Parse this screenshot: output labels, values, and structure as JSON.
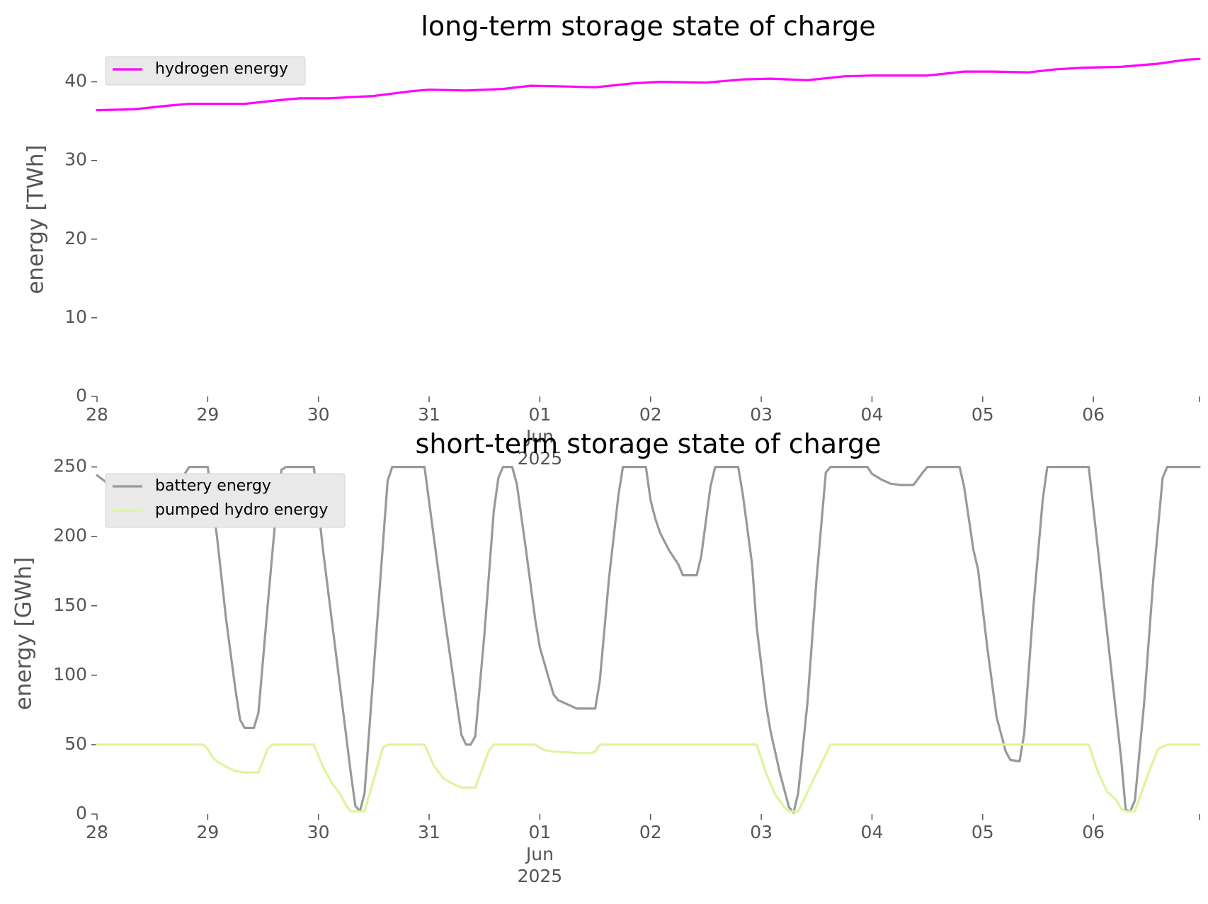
{
  "chart_data": [
    {
      "type": "line",
      "title": "long-term storage state of charge",
      "xlabel": "",
      "ylabel": "energy [TWh]",
      "x_range": [
        "2025-05-28 00:00",
        "2025-06-06 23:00"
      ],
      "x_ticks": [
        "28",
        "29",
        "30",
        "31",
        "01",
        "02",
        "03",
        "04",
        "05",
        "06"
      ],
      "x_tick_sublabel": {
        "tick": "01",
        "lines": [
          "Jun",
          "2025"
        ]
      },
      "ylim": [
        0,
        45
      ],
      "y_ticks": [
        0,
        10,
        20,
        30,
        40
      ],
      "grid": false,
      "legend_position": "upper-left",
      "series": [
        {
          "name": "hydrogen energy",
          "color": "#ff00ff",
          "points": [
            [
              "2025-05-28 00:00",
              36.4
            ],
            [
              "2025-05-28 08:00",
              36.5
            ],
            [
              "2025-05-28 16:00",
              37.0
            ],
            [
              "2025-05-28 20:00",
              37.2
            ],
            [
              "2025-05-29 08:00",
              37.2
            ],
            [
              "2025-05-29 16:00",
              37.7
            ],
            [
              "2025-05-29 20:00",
              37.9
            ],
            [
              "2025-05-30 02:00",
              37.9
            ],
            [
              "2025-05-30 12:00",
              38.2
            ],
            [
              "2025-05-30 20:00",
              38.8
            ],
            [
              "2025-05-31 00:00",
              39.0
            ],
            [
              "2025-05-31 08:00",
              38.9
            ],
            [
              "2025-05-31 16:00",
              39.1
            ],
            [
              "2025-05-31 22:00",
              39.5
            ],
            [
              "2025-06-01 06:00",
              39.4
            ],
            [
              "2025-06-01 12:00",
              39.3
            ],
            [
              "2025-06-01 20:00",
              39.8
            ],
            [
              "2025-06-02 02:00",
              40.0
            ],
            [
              "2025-06-02 12:00",
              39.9
            ],
            [
              "2025-06-02 20:00",
              40.3
            ],
            [
              "2025-06-03 02:00",
              40.4
            ],
            [
              "2025-06-03 10:00",
              40.2
            ],
            [
              "2025-06-03 18:00",
              40.7
            ],
            [
              "2025-06-04 00:00",
              40.8
            ],
            [
              "2025-06-04 12:00",
              40.8
            ],
            [
              "2025-06-04 20:00",
              41.3
            ],
            [
              "2025-06-05 02:00",
              41.3
            ],
            [
              "2025-06-05 10:00",
              41.2
            ],
            [
              "2025-06-05 16:00",
              41.6
            ],
            [
              "2025-06-05 22:00",
              41.8
            ],
            [
              "2025-06-06 06:00",
              41.9
            ],
            [
              "2025-06-06 14:00",
              42.3
            ],
            [
              "2025-06-06 20:00",
              42.8
            ],
            [
              "2025-06-06 23:00",
              42.9
            ]
          ]
        }
      ]
    },
    {
      "type": "line",
      "title": "short-term storage state of charge",
      "xlabel": "",
      "ylabel": "energy [GWh]",
      "x_range": [
        "2025-05-28 00:00",
        "2025-06-06 23:00"
      ],
      "x_ticks": [
        "28",
        "29",
        "30",
        "31",
        "01",
        "02",
        "03",
        "04",
        "05",
        "06"
      ],
      "x_tick_sublabel": {
        "tick": "01",
        "lines": [
          "Jun",
          "2025"
        ]
      },
      "ylim": [
        0,
        260
      ],
      "y_ticks": [
        0,
        50,
        100,
        150,
        200,
        250
      ],
      "grid": false,
      "legend_position": "upper-left",
      "series": [
        {
          "name": "battery energy",
          "color": "#999999",
          "points": [
            [
              "2025-05-28 00:00",
              244
            ],
            [
              "2025-05-28 02:00",
              239
            ],
            [
              "2025-05-28 06:00",
              235
            ],
            [
              "2025-05-28 10:00",
              232
            ],
            [
              "2025-05-28 14:00",
              232
            ],
            [
              "2025-05-28 16:00",
              232
            ],
            [
              "2025-05-28 18:00",
              240
            ],
            [
              "2025-05-28 20:00",
              250
            ],
            [
              "2025-05-29 00:00",
              250
            ],
            [
              "2025-05-29 02:00",
              200
            ],
            [
              "2025-05-29 04:00",
              140
            ],
            [
              "2025-05-29 06:00",
              90
            ],
            [
              "2025-05-29 07:00",
              68
            ],
            [
              "2025-05-29 08:00",
              62
            ],
            [
              "2025-05-29 10:00",
              62
            ],
            [
              "2025-05-29 11:00",
              73
            ],
            [
              "2025-05-29 13:00",
              150
            ],
            [
              "2025-05-29 15:00",
              225
            ],
            [
              "2025-05-29 16:00",
              248
            ],
            [
              "2025-05-29 17:00",
              250
            ],
            [
              "2025-05-29 23:00",
              250
            ],
            [
              "2025-05-30 01:00",
              190
            ],
            [
              "2025-05-30 04:00",
              110
            ],
            [
              "2025-05-30 07:00",
              30
            ],
            [
              "2025-05-30 08:00",
              6
            ],
            [
              "2025-05-30 09:00",
              2
            ],
            [
              "2025-05-30 10:00",
              15
            ],
            [
              "2025-05-30 11:00",
              60
            ],
            [
              "2025-05-30 13:00",
              150
            ],
            [
              "2025-05-30 15:00",
              240
            ],
            [
              "2025-05-30 16:00",
              250
            ],
            [
              "2025-05-30 23:00",
              250
            ],
            [
              "2025-05-31 03:00",
              150
            ],
            [
              "2025-05-31 06:00",
              80
            ],
            [
              "2025-05-31 07:00",
              57
            ],
            [
              "2025-05-31 08:00",
              50
            ],
            [
              "2025-05-31 09:00",
              50
            ],
            [
              "2025-05-31 10:00",
              56
            ],
            [
              "2025-05-31 12:00",
              130
            ],
            [
              "2025-05-31 14:00",
              218
            ],
            [
              "2025-05-31 15:00",
              242
            ],
            [
              "2025-05-31 16:00",
              250
            ],
            [
              "2025-05-31 18:00",
              250
            ],
            [
              "2025-05-31 19:00",
              238
            ],
            [
              "2025-05-31 21:00",
              190
            ],
            [
              "2025-05-31 23:00",
              140
            ],
            [
              "2025-06-01 00:00",
              120
            ],
            [
              "2025-06-01 02:00",
              97
            ],
            [
              "2025-06-01 03:00",
              86
            ],
            [
              "2025-06-01 04:00",
              82
            ],
            [
              "2025-06-01 06:00",
              79
            ],
            [
              "2025-06-01 08:00",
              76
            ],
            [
              "2025-06-01 10:00",
              76
            ],
            [
              "2025-06-01 12:00",
              76
            ],
            [
              "2025-06-01 13:00",
              96
            ],
            [
              "2025-06-01 15:00",
              170
            ],
            [
              "2025-06-01 17:00",
              229
            ],
            [
              "2025-06-01 18:00",
              250
            ],
            [
              "2025-06-01 23:00",
              250
            ],
            [
              "2025-06-02 00:00",
              226
            ],
            [
              "2025-06-02 01:00",
              213
            ],
            [
              "2025-06-02 02:00",
              203
            ],
            [
              "2025-06-02 04:00",
              190
            ],
            [
              "2025-06-02 06:00",
              180
            ],
            [
              "2025-06-02 07:00",
              172
            ],
            [
              "2025-06-02 10:00",
              172
            ],
            [
              "2025-06-02 11:00",
              186
            ],
            [
              "2025-06-02 13:00",
              236
            ],
            [
              "2025-06-02 14:00",
              250
            ],
            [
              "2025-06-02 19:00",
              250
            ],
            [
              "2025-06-02 20:00",
              230
            ],
            [
              "2025-06-02 22:00",
              180
            ],
            [
              "2025-06-02 23:00",
              135
            ],
            [
              "2025-06-03 01:00",
              80
            ],
            [
              "2025-06-03 02:00",
              60
            ],
            [
              "2025-06-03 04:00",
              30
            ],
            [
              "2025-06-03 06:00",
              5
            ],
            [
              "2025-06-03 07:00",
              1
            ],
            [
              "2025-06-03 08:00",
              15
            ],
            [
              "2025-06-03 10:00",
              80
            ],
            [
              "2025-06-03 12:00",
              170
            ],
            [
              "2025-06-03 14:00",
              246
            ],
            [
              "2025-06-03 15:00",
              250
            ],
            [
              "2025-06-03 23:00",
              250
            ],
            [
              "2025-06-04 00:00",
              245
            ],
            [
              "2025-06-04 02:00",
              241
            ],
            [
              "2025-06-04 04:00",
              238
            ],
            [
              "2025-06-04 06:00",
              237
            ],
            [
              "2025-06-04 09:00",
              237
            ],
            [
              "2025-06-04 11:00",
              246
            ],
            [
              "2025-06-04 12:00",
              250
            ],
            [
              "2025-06-04 19:00",
              250
            ],
            [
              "2025-06-04 20:00",
              235
            ],
            [
              "2025-06-04 22:00",
              190
            ],
            [
              "2025-06-04 23:00",
              176
            ],
            [
              "2025-06-05 01:00",
              120
            ],
            [
              "2025-06-05 03:00",
              70
            ],
            [
              "2025-06-05 05:00",
              45
            ],
            [
              "2025-06-05 06:00",
              39
            ],
            [
              "2025-06-05 08:00",
              38
            ],
            [
              "2025-06-05 09:00",
              58
            ],
            [
              "2025-06-05 11:00",
              150
            ],
            [
              "2025-06-05 13:00",
              226
            ],
            [
              "2025-06-05 14:00",
              250
            ],
            [
              "2025-06-05 23:00",
              250
            ],
            [
              "2025-06-06 01:00",
              190
            ],
            [
              "2025-06-06 04:00",
              100
            ],
            [
              "2025-06-06 06:00",
              40
            ],
            [
              "2025-06-06 07:00",
              3
            ],
            [
              "2025-06-06 08:00",
              2
            ],
            [
              "2025-06-06 09:00",
              10
            ],
            [
              "2025-06-06 11:00",
              80
            ],
            [
              "2025-06-06 13:00",
              170
            ],
            [
              "2025-06-06 15:00",
              242
            ],
            [
              "2025-06-06 16:00",
              250
            ],
            [
              "2025-06-06 23:00",
              250
            ]
          ]
        },
        {
          "name": "pumped hydro energy",
          "color": "#dcf59d",
          "points": [
            [
              "2025-05-28 00:00",
              50
            ],
            [
              "2025-05-28 23:00",
              50
            ],
            [
              "2025-05-29 00:00",
              47
            ],
            [
              "2025-05-29 01:00",
              41
            ],
            [
              "2025-05-29 02:00",
              38
            ],
            [
              "2025-05-29 04:00",
              34
            ],
            [
              "2025-05-29 06:00",
              31
            ],
            [
              "2025-05-29 08:00",
              30
            ],
            [
              "2025-05-29 11:00",
              30
            ],
            [
              "2025-05-29 13:00",
              47
            ],
            [
              "2025-05-29 14:00",
              50
            ],
            [
              "2025-05-29 23:00",
              50
            ],
            [
              "2025-05-30 01:00",
              34
            ],
            [
              "2025-05-30 03:00",
              22
            ],
            [
              "2025-05-30 05:00",
              13
            ],
            [
              "2025-05-30 06:00",
              6
            ],
            [
              "2025-05-30 07:00",
              2
            ],
            [
              "2025-05-30 10:00",
              2
            ],
            [
              "2025-05-30 12:00",
              25
            ],
            [
              "2025-05-30 14:00",
              48
            ],
            [
              "2025-05-30 15:00",
              50
            ],
            [
              "2025-05-30 23:00",
              50
            ],
            [
              "2025-05-31 01:00",
              35
            ],
            [
              "2025-05-31 03:00",
              26
            ],
            [
              "2025-05-31 05:00",
              22
            ],
            [
              "2025-05-31 07:00",
              19
            ],
            [
              "2025-05-31 10:00",
              19
            ],
            [
              "2025-05-31 13:00",
              46
            ],
            [
              "2025-05-31 14:00",
              50
            ],
            [
              "2025-05-31 23:00",
              50
            ],
            [
              "2025-06-01 01:00",
              46
            ],
            [
              "2025-06-01 03:00",
              45
            ],
            [
              "2025-06-01 06:00",
              44.5
            ],
            [
              "2025-06-01 08:00",
              44
            ],
            [
              "2025-06-01 11:00",
              44
            ],
            [
              "2025-06-01 12:00",
              45
            ],
            [
              "2025-06-01 13:00",
              50
            ],
            [
              "2025-06-02 23:00",
              50
            ],
            [
              "2025-06-03 01:00",
              30
            ],
            [
              "2025-06-03 03:00",
              14
            ],
            [
              "2025-06-03 05:00",
              5
            ],
            [
              "2025-06-03 06:00",
              2
            ],
            [
              "2025-06-03 08:00",
              2
            ],
            [
              "2025-06-03 15:00",
              50
            ],
            [
              "2025-06-05 23:00",
              50
            ],
            [
              "2025-06-06 01:00",
              30
            ],
            [
              "2025-06-06 03:00",
              16
            ],
            [
              "2025-06-06 05:00",
              10
            ],
            [
              "2025-06-06 06:00",
              4
            ],
            [
              "2025-06-06 07:00",
              2
            ],
            [
              "2025-06-06 09:00",
              2
            ],
            [
              "2025-06-06 12:00",
              30
            ],
            [
              "2025-06-06 14:00",
              47
            ],
            [
              "2025-06-06 16:00",
              50
            ],
            [
              "2025-06-06 23:00",
              50
            ]
          ]
        }
      ]
    }
  ]
}
